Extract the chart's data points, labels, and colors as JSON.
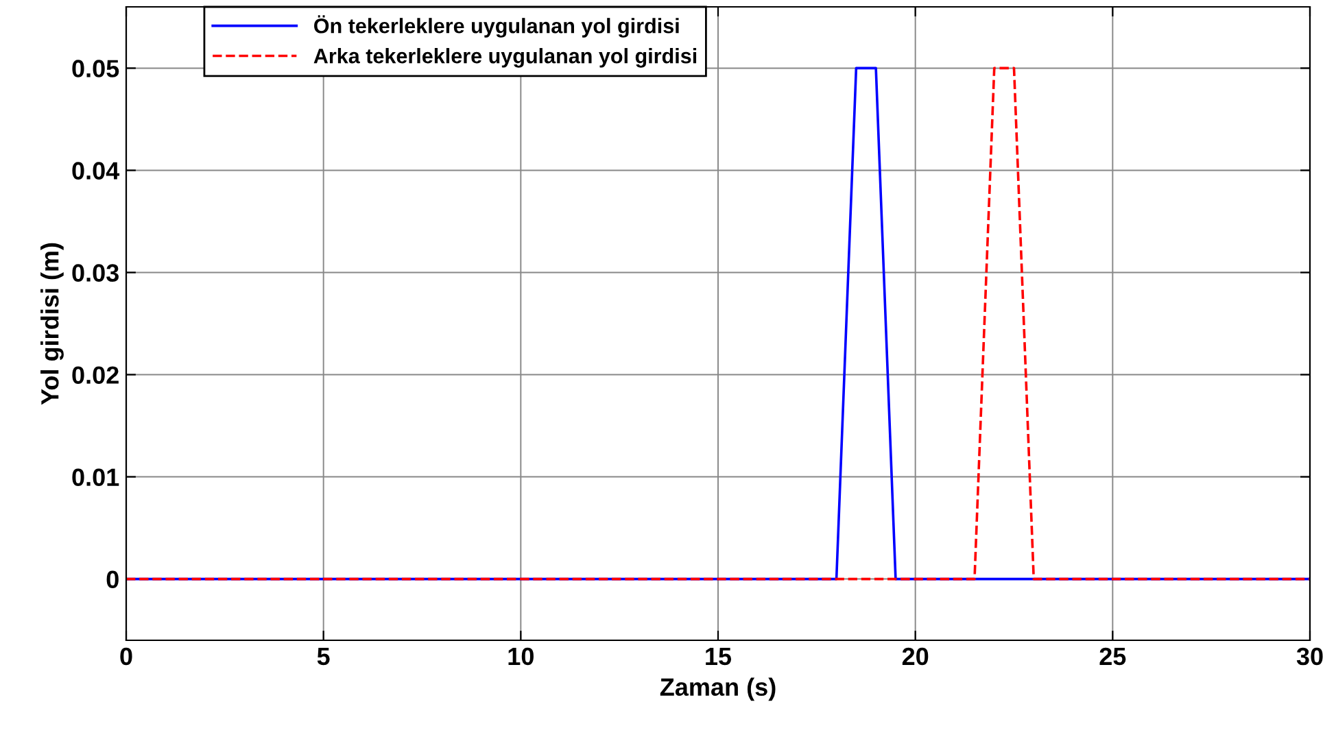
{
  "chart_data": {
    "type": "line",
    "xlabel": "Zaman (s)",
    "ylabel": "Yol girdisi (m)",
    "series": [
      {
        "name": "Ön tekerleklere uygulanan yol girdisi",
        "color": "#0000ff",
        "line_style": "solid",
        "x": [
          0,
          18,
          18.5,
          19,
          19.5,
          30
        ],
        "values": [
          0,
          0,
          0.05,
          0.05,
          0,
          0
        ]
      },
      {
        "name": "Arka tekerleklere uygulanan yol girdisi",
        "color": "#ff0000",
        "line_style": "dashed",
        "x": [
          0,
          21.5,
          22,
          22.5,
          23,
          30
        ],
        "values": [
          0,
          0,
          0.05,
          0.05,
          0,
          0
        ]
      }
    ],
    "xlim": [
      0,
      30
    ],
    "xticks": [
      0,
      5,
      10,
      15,
      20,
      25,
      30
    ],
    "ylim": [
      -0.006,
      0.056
    ],
    "yticks": [
      0,
      0.01,
      0.02,
      0.03,
      0.04,
      0.05
    ],
    "grid": true,
    "legend": "top left"
  }
}
